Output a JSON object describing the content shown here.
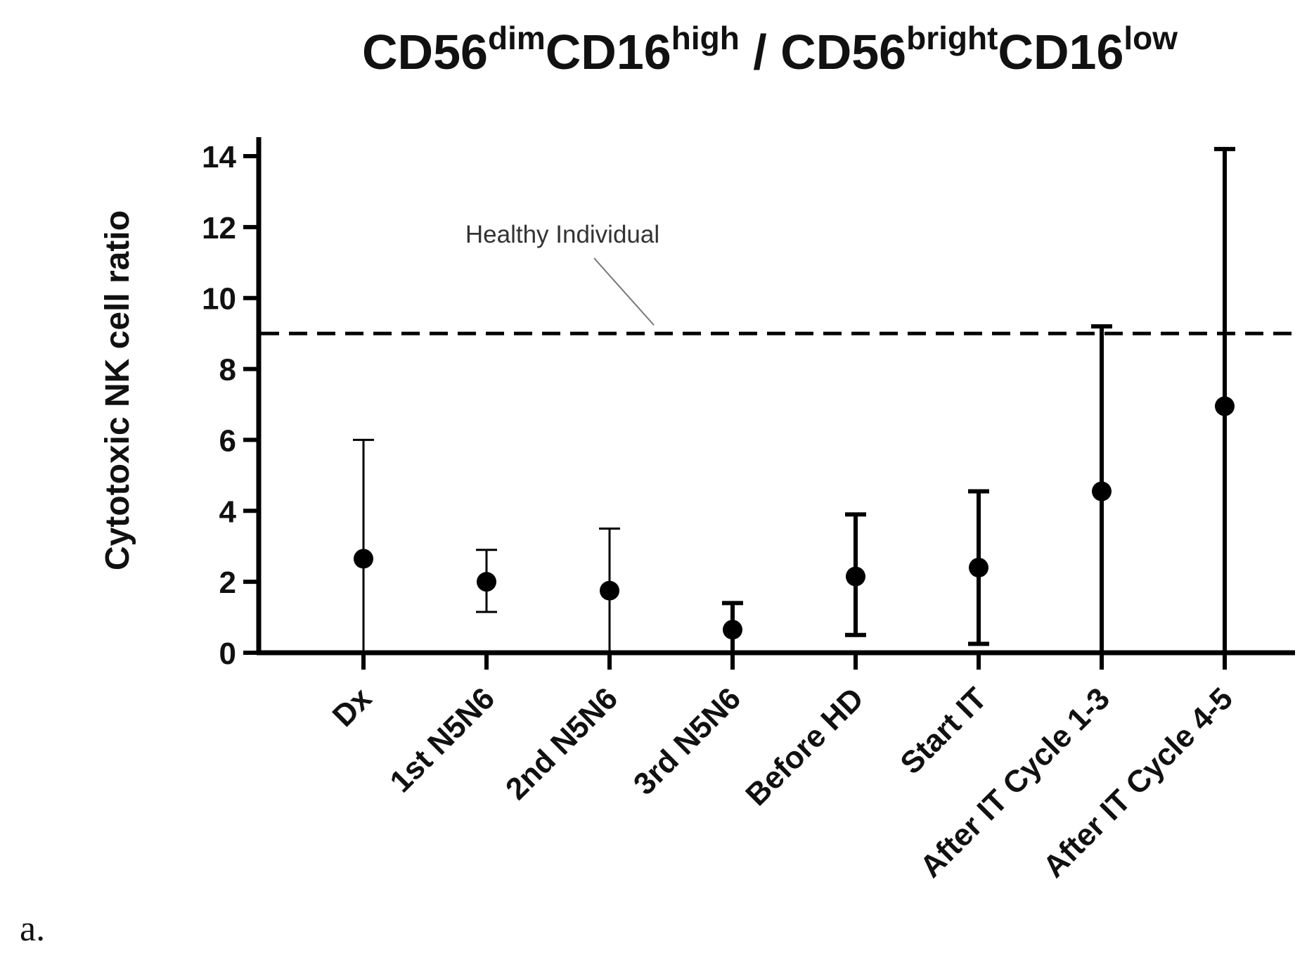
{
  "chart_data": {
    "type": "scatter",
    "title": {
      "parts": [
        {
          "text": "CD56",
          "sup": false
        },
        {
          "text": "dim",
          "sup": true
        },
        {
          "text": "CD16",
          "sup": false
        },
        {
          "text": "high",
          "sup": true
        },
        {
          "text": " / CD56",
          "sup": false
        },
        {
          "text": "bright",
          "sup": true
        },
        {
          "text": "CD16",
          "sup": false
        },
        {
          "text": "low",
          "sup": true
        }
      ]
    },
    "xlabel": "",
    "ylabel": "Cytotoxic NK cell ratio",
    "ylim": [
      0,
      14.5
    ],
    "yticks": [
      0,
      2,
      4,
      6,
      8,
      10,
      12,
      14
    ],
    "categories": [
      "Dx",
      "1st N5N6",
      "2nd N5N6",
      "3rd N5N6",
      "Before HD",
      "Start IT",
      "After IT Cycle 1-3",
      "After IT Cycle 4-5"
    ],
    "series": [
      {
        "name": "Cytotoxic NK cell ratio",
        "values": [
          2.65,
          2.0,
          1.75,
          0.65,
          2.15,
          2.4,
          4.55,
          6.95
        ],
        "error_low": [
          0.0,
          1.15,
          0.0,
          0.0,
          0.5,
          0.25,
          0.0,
          0.0
        ],
        "error_high": [
          6.0,
          2.9,
          3.5,
          1.4,
          3.9,
          4.55,
          9.2,
          14.2
        ],
        "cap_heavy": [
          false,
          false,
          false,
          true,
          true,
          true,
          true,
          true
        ],
        "color": "#000000"
      }
    ],
    "reference_line": {
      "value": 9.0,
      "style": "dashed",
      "label": "Healthy Individual"
    },
    "grid": false,
    "legend": "none"
  },
  "panel_label": "a."
}
